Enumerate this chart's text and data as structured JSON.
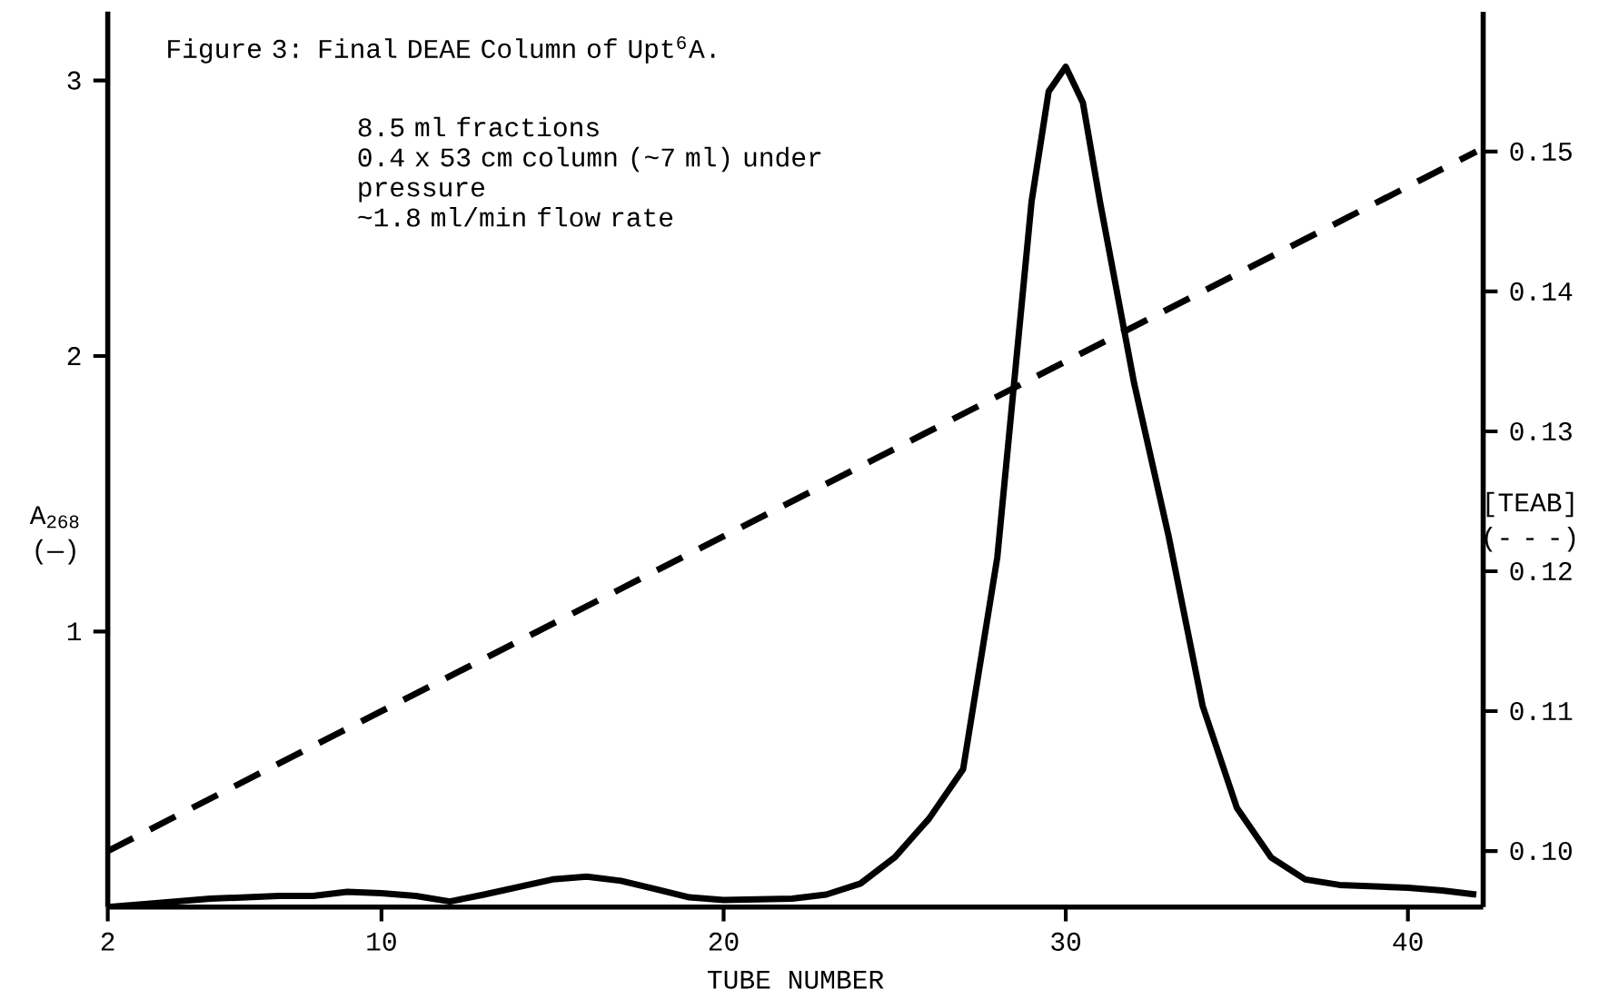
{
  "chart_data": {
    "type": "line",
    "title": "Figure 3: Final DEAE Column of Upt$^{6}$A.",
    "xlabel": "TUBE NUMBER",
    "ylabel": "A$_{268}$ (—)",
    "y2label": "[TEAB] (- - -)",
    "annotations": [
      "8.5 ml fractions",
      "0.4 x 53 cm column (~7 ml) under pressure",
      "~1.8 ml/min flow rate"
    ],
    "series": [
      {
        "color": "#000000",
        "line_style": "solid",
        "x": [
          2,
          3,
          5,
          7,
          8,
          9,
          10,
          11,
          12,
          13,
          15,
          16,
          17,
          18,
          19,
          20,
          22,
          23,
          24,
          25,
          26,
          27,
          28,
          29,
          29.5,
          30,
          30.5,
          31,
          32,
          33,
          34,
          35,
          36,
          37,
          38,
          40,
          41,
          42
        ],
        "values": [
          0.0,
          0.01,
          0.03,
          0.04,
          0.04,
          0.055,
          0.05,
          0.04,
          0.02,
          0.045,
          0.1,
          0.11,
          0.095,
          0.065,
          0.035,
          0.025,
          0.03,
          0.045,
          0.085,
          0.18,
          0.32,
          0.5,
          1.27,
          2.56,
          2.96,
          3.05,
          2.92,
          2.56,
          1.9,
          1.35,
          0.73,
          0.36,
          0.18,
          0.1,
          0.08,
          0.07,
          0.06,
          0.045
        ]
      },
      {
        "color": "#000000",
        "line_style": "dashed",
        "axis": "y2",
        "x": [
          2,
          42
        ],
        "values": [
          0.1,
          0.15
        ]
      }
    ],
    "xlim": [
      2,
      42.2
    ],
    "xticks": [
      2,
      10,
      20,
      30,
      40
    ],
    "ylim": [
      0,
      3.25
    ],
    "yticks": [
      1,
      2,
      3
    ],
    "y2lim": [
      0.096,
      0.16
    ],
    "y2ticks": [
      {
        "value": 0.1,
        "label": "0.10"
      },
      0.11,
      0.12,
      0.13,
      0.14,
      0.15
    ],
    "grid": false
  }
}
